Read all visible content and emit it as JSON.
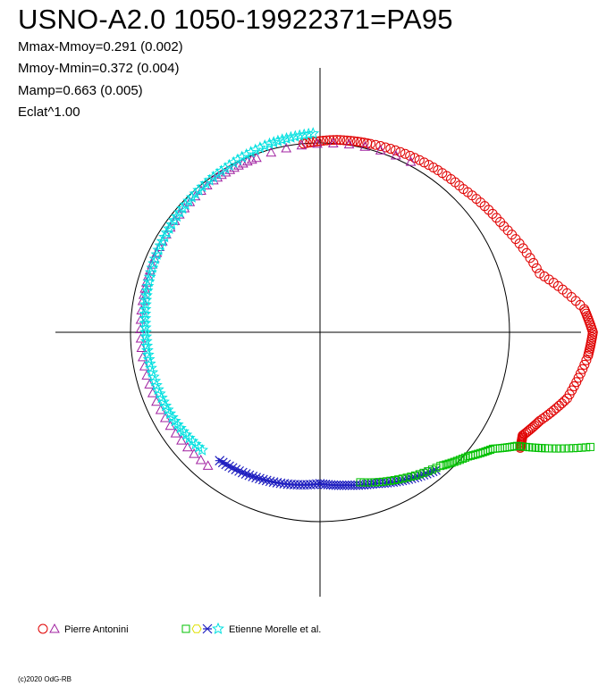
{
  "title": "USNO-A2.0 1050-19922371=PA95",
  "stats": [
    "Mmax-Mmoy=0.291 (0.002)",
    "Mmoy-Mmin=0.372 (0.004)",
    "Mamp=0.663 (0.005)",
    "Eclat^1.00"
  ],
  "copyright": "(c)2020 OdG-RB",
  "legend": [
    {
      "label": "Pierre Antonini",
      "symbols": [
        "circle",
        "triangle"
      ],
      "colors": [
        "#e00000",
        "#a020a0"
      ]
    },
    {
      "label": "Etienne Morelle et al.",
      "symbols": [
        "square",
        "hexagon",
        "star-cross",
        "star"
      ],
      "colors": [
        "#00c000",
        "#e0e000",
        "#2020c0",
        "#00e0e0"
      ]
    }
  ],
  "chart_data": {
    "type": "scatter",
    "polar": true,
    "axes": "crosshair",
    "reference_circle": true,
    "series": [
      {
        "name": "Pierre Antonini",
        "marker": "circle",
        "color": "#e00000",
        "points_r_theta_deg": [
          [
            1.0,
            95
          ],
          [
            1.02,
            85
          ],
          [
            1.03,
            75
          ],
          [
            1.05,
            60
          ],
          [
            1.07,
            45
          ],
          [
            1.12,
            30
          ],
          [
            1.2,
            15
          ],
          [
            1.4,
            5
          ],
          [
            1.44,
            0
          ],
          [
            1.42,
            -5
          ],
          [
            1.35,
            -15
          ],
          [
            1.25,
            -22
          ],
          [
            1.2,
            -27
          ],
          [
            1.22,
            -30
          ]
        ]
      },
      {
        "name": "Pierre Antonini",
        "marker": "triangle",
        "color": "#a020a0",
        "points_r_theta_deg": [
          [
            1.02,
            62
          ],
          [
            0.98,
            110
          ],
          [
            0.98,
            125
          ],
          [
            0.96,
            150
          ],
          [
            0.95,
            170
          ],
          [
            0.94,
            200
          ],
          [
            0.92,
            230
          ]
        ]
      },
      {
        "name": "Etienne Morelle et al.",
        "marker": "star",
        "color": "#00e0e0",
        "points_r_theta_deg": [
          [
            1.05,
            92
          ],
          [
            1.03,
            105
          ],
          [
            1.0,
            120
          ],
          [
            0.98,
            135
          ],
          [
            0.96,
            150
          ],
          [
            0.94,
            165
          ],
          [
            0.92,
            180
          ],
          [
            0.91,
            195
          ],
          [
            0.9,
            210
          ],
          [
            0.88,
            225
          ]
        ]
      },
      {
        "name": "Etienne Morelle et al.",
        "marker": "star-cross",
        "color": "#2020c0",
        "points_r_theta_deg": [
          [
            0.86,
            232
          ],
          [
            0.84,
            245
          ],
          [
            0.82,
            258
          ],
          [
            0.8,
            270
          ],
          [
            0.82,
            280
          ],
          [
            0.85,
            290
          ],
          [
            0.9,
            300
          ],
          [
            0.95,
            310
          ]
        ]
      },
      {
        "name": "Etienne Morelle et al.",
        "marker": "square",
        "color": "#00c000",
        "points_r_theta_deg": [
          [
            0.82,
            285
          ],
          [
            0.88,
            298
          ],
          [
            0.95,
            312
          ],
          [
            1.02,
            320
          ],
          [
            1.1,
            326
          ],
          [
            1.2,
            330
          ],
          [
            1.35,
            333
          ],
          [
            1.55,
            337
          ]
        ]
      }
    ]
  }
}
